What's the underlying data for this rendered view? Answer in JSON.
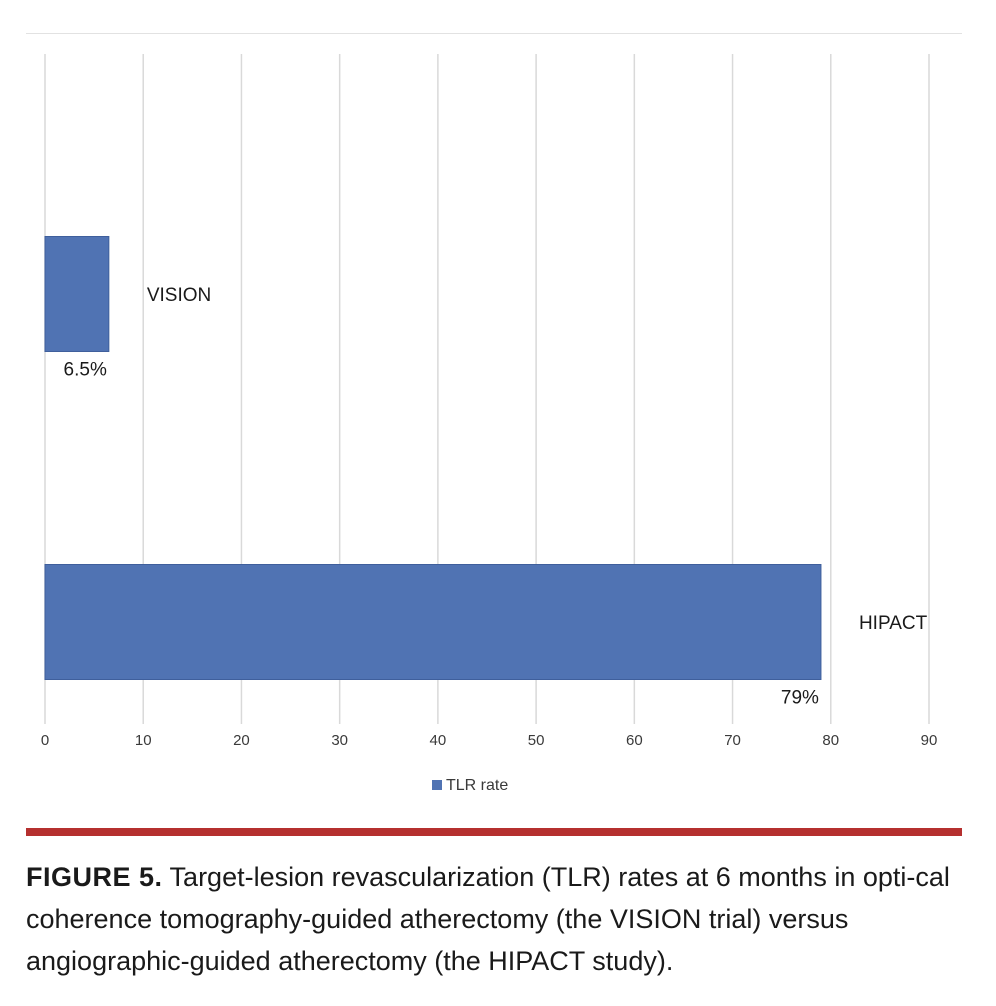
{
  "colors": {
    "bar": "#5073b3",
    "bar_edge": "#3f5f9c",
    "grid": "#d9d9d9",
    "divider": "#b5302f"
  },
  "chart_data": {
    "type": "bar",
    "orientation": "horizontal",
    "title": "",
    "xlabel": "",
    "ylabel": "",
    "xlim": [
      0,
      90
    ],
    "ticks": [
      0,
      10,
      20,
      30,
      40,
      50,
      60,
      70,
      80,
      90
    ],
    "grid": true,
    "legend_position": "bottom",
    "categories": [
      "VISION",
      "HIPACT"
    ],
    "series": [
      {
        "name": "TLR rate",
        "values": [
          6.5,
          79
        ],
        "data_labels": [
          "6.5%",
          "79%"
        ]
      }
    ]
  },
  "caption": {
    "label": "FIGURE 5.",
    "text": "Target-lesion revascularization (TLR) rates at 6 months in opti-cal coherence tomography-guided atherectomy (the VISION trial) versus angiographic-guided atherectomy (the HIPACT study)."
  }
}
